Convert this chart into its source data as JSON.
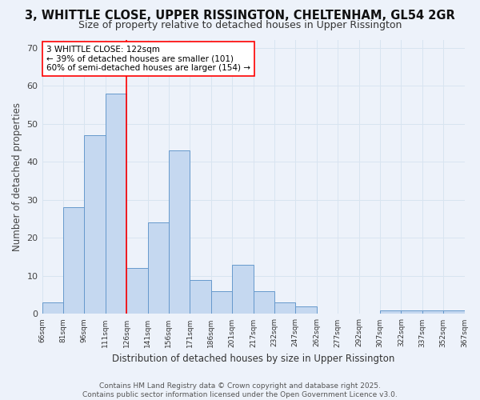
{
  "title_line1": "3, WHITTLE CLOSE, UPPER RISSINGTON, CHELTENHAM, GL54 2GR",
  "title_line2": "Size of property relative to detached houses in Upper Rissington",
  "xlabel": "Distribution of detached houses by size in Upper Rissington",
  "ylabel": "Number of detached properties",
  "bin_labels": [
    "66sqm",
    "81sqm",
    "96sqm",
    "111sqm",
    "126sqm",
    "141sqm",
    "156sqm",
    "171sqm",
    "186sqm",
    "201sqm",
    "217sqm",
    "232sqm",
    "247sqm",
    "262sqm",
    "277sqm",
    "292sqm",
    "307sqm",
    "322sqm",
    "337sqm",
    "352sqm",
    "367sqm"
  ],
  "bar_heights": [
    3,
    28,
    47,
    58,
    12,
    24,
    43,
    9,
    6,
    13,
    6,
    3,
    2,
    0,
    0,
    0,
    1,
    1,
    1,
    1
  ],
  "bar_color": "#c5d8f0",
  "bar_edge_color": "#6699cc",
  "grid_color": "#d8e4f0",
  "background_color": "#edf2fa",
  "red_line_bin_index": 4,
  "annotation_text": "3 WHITTLE CLOSE: 122sqm\n← 39% of detached houses are smaller (101)\n60% of semi-detached houses are larger (154) →",
  "ylim": [
    0,
    72
  ],
  "yticks": [
    0,
    10,
    20,
    30,
    40,
    50,
    60,
    70
  ],
  "footer_line1": "Contains HM Land Registry data © Crown copyright and database right 2025.",
  "footer_line2": "Contains public sector information licensed under the Open Government Licence v3.0."
}
